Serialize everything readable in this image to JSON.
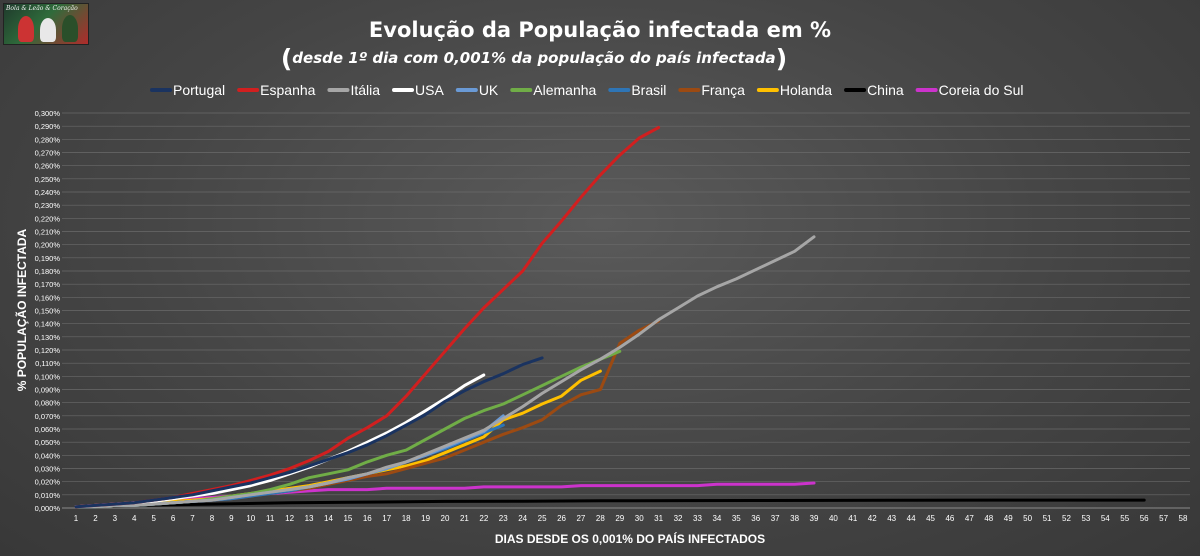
{
  "logo": {
    "text": "Bola & Leão & Coração"
  },
  "chart_data": {
    "type": "line",
    "title": "Evolução da População infectada em %",
    "subtitle_open": "(",
    "subtitle": "desde 1º dia com 0,001% da população do país infectada",
    "subtitle_close": ")",
    "xlabel": "DIAS DESDE OS 0,001% DO PAÍS INFECTADOS",
    "ylabel": "% POPULAÇÃO INFECTADA",
    "xlim": [
      1,
      58
    ],
    "ylim": [
      0,
      0.3
    ],
    "ytick_step": 0.01,
    "grid": "horizontal",
    "legend_position": "top",
    "series": [
      {
        "name": "Portugal",
        "color": "#1a3360",
        "x": [
          1,
          2,
          3,
          4,
          5,
          6,
          7,
          8,
          9,
          10,
          11,
          12,
          13,
          14,
          15,
          16,
          17,
          18,
          19,
          20,
          21,
          22,
          23,
          24,
          25
        ],
        "values": [
          0.001,
          0.002,
          0.003,
          0.004,
          0.006,
          0.008,
          0.01,
          0.013,
          0.016,
          0.019,
          0.023,
          0.027,
          0.032,
          0.037,
          0.042,
          0.048,
          0.055,
          0.063,
          0.071,
          0.081,
          0.089,
          0.096,
          0.102,
          0.109,
          0.114
        ]
      },
      {
        "name": "Espanha",
        "color": "#d11f1f",
        "x": [
          1,
          2,
          3,
          4,
          5,
          6,
          7,
          8,
          9,
          10,
          11,
          12,
          13,
          14,
          15,
          16,
          17,
          18,
          19,
          20,
          21,
          22,
          23,
          24,
          25,
          26,
          27,
          28,
          29,
          30,
          31
        ],
        "values": [
          0.001,
          0.002,
          0.003,
          0.004,
          0.006,
          0.008,
          0.011,
          0.014,
          0.017,
          0.021,
          0.025,
          0.03,
          0.036,
          0.043,
          0.053,
          0.061,
          0.07,
          0.085,
          0.102,
          0.119,
          0.136,
          0.152,
          0.166,
          0.18,
          0.201,
          0.218,
          0.236,
          0.253,
          0.268,
          0.281,
          0.289
        ]
      },
      {
        "name": "Itália",
        "color": "#a6a6a6",
        "x": [
          1,
          2,
          3,
          4,
          5,
          6,
          7,
          8,
          9,
          10,
          11,
          12,
          13,
          14,
          15,
          16,
          17,
          18,
          19,
          20,
          21,
          22,
          23,
          24,
          25,
          26,
          27,
          28,
          29,
          30,
          31,
          32,
          33,
          34,
          35,
          36,
          37,
          38,
          39
        ],
        "values": [
          0.001,
          0.001,
          0.002,
          0.002,
          0.003,
          0.004,
          0.005,
          0.006,
          0.008,
          0.01,
          0.012,
          0.014,
          0.016,
          0.019,
          0.023,
          0.026,
          0.031,
          0.035,
          0.041,
          0.047,
          0.053,
          0.059,
          0.068,
          0.077,
          0.087,
          0.096,
          0.105,
          0.113,
          0.122,
          0.132,
          0.143,
          0.152,
          0.161,
          0.168,
          0.174,
          0.181,
          0.188,
          0.195,
          0.206
        ]
      },
      {
        "name": "USA",
        "color": "#ffffff",
        "x": [
          1,
          2,
          3,
          4,
          5,
          6,
          7,
          8,
          9,
          10,
          11,
          12,
          13,
          14,
          15,
          16,
          17,
          18,
          19,
          20,
          21,
          22
        ],
        "values": [
          0.001,
          0.002,
          0.003,
          0.004,
          0.005,
          0.007,
          0.009,
          0.011,
          0.014,
          0.017,
          0.021,
          0.026,
          0.031,
          0.037,
          0.043,
          0.05,
          0.057,
          0.065,
          0.074,
          0.083,
          0.093,
          0.101
        ]
      },
      {
        "name": "UK",
        "color": "#6a9ad6",
        "x": [
          1,
          2,
          3,
          4,
          5,
          6,
          7,
          8,
          9,
          10,
          11,
          12,
          13,
          14,
          15,
          16,
          17,
          18,
          19,
          20,
          21,
          22,
          23
        ],
        "values": [
          0.001,
          0.001,
          0.002,
          0.002,
          0.003,
          0.004,
          0.005,
          0.006,
          0.008,
          0.01,
          0.012,
          0.014,
          0.016,
          0.019,
          0.022,
          0.026,
          0.03,
          0.035,
          0.04,
          0.046,
          0.052,
          0.058,
          0.07
        ]
      },
      {
        "name": "Alemanha",
        "color": "#70ad47",
        "x": [
          1,
          2,
          3,
          4,
          5,
          6,
          7,
          8,
          9,
          10,
          11,
          12,
          13,
          14,
          15,
          16,
          17,
          18,
          19,
          20,
          21,
          22,
          23,
          24,
          25,
          26,
          27,
          28,
          29
        ],
        "values": [
          0.001,
          0.001,
          0.002,
          0.002,
          0.003,
          0.004,
          0.005,
          0.007,
          0.009,
          0.011,
          0.014,
          0.018,
          0.023,
          0.026,
          0.029,
          0.035,
          0.04,
          0.044,
          0.052,
          0.06,
          0.068,
          0.074,
          0.079,
          0.086,
          0.093,
          0.1,
          0.107,
          0.113,
          0.119
        ]
      },
      {
        "name": "Brasil",
        "color": "#2e75b6",
        "x": [
          1,
          2,
          3,
          4,
          5,
          6,
          7,
          8,
          9,
          10,
          11,
          12,
          13,
          14,
          15,
          16,
          17,
          18,
          19,
          20,
          21,
          22,
          23
        ],
        "values": [
          0.001,
          0.001,
          0.002,
          0.002,
          0.003,
          0.004,
          0.005,
          0.006,
          0.007,
          0.009,
          0.011,
          0.013,
          0.016,
          0.019,
          0.022,
          0.026,
          0.03,
          0.035,
          0.04,
          0.045,
          0.051,
          0.057,
          0.063
        ]
      },
      {
        "name": "França",
        "color": "#9c4a12",
        "x": [
          1,
          2,
          3,
          4,
          5,
          6,
          7,
          8,
          9,
          10,
          11,
          12,
          13,
          14,
          15,
          16,
          17,
          18,
          19,
          20,
          21,
          22,
          23,
          24,
          25,
          26,
          27,
          28,
          29,
          30,
          31
        ],
        "values": [
          0.001,
          0.001,
          0.002,
          0.002,
          0.003,
          0.004,
          0.005,
          0.006,
          0.007,
          0.009,
          0.011,
          0.013,
          0.015,
          0.018,
          0.021,
          0.024,
          0.026,
          0.03,
          0.034,
          0.038,
          0.044,
          0.05,
          0.056,
          0.061,
          0.067,
          0.078,
          0.086,
          0.09,
          0.125,
          0.135,
          0.142
        ]
      },
      {
        "name": "Holanda",
        "color": "#ffc000",
        "x": [
          1,
          2,
          3,
          4,
          5,
          6,
          7,
          8,
          9,
          10,
          11,
          12,
          13,
          14,
          15,
          16,
          17,
          18,
          19,
          20,
          21,
          22,
          23,
          24,
          25,
          26,
          27,
          28
        ],
        "values": [
          0.001,
          0.001,
          0.002,
          0.003,
          0.004,
          0.005,
          0.006,
          0.007,
          0.009,
          0.011,
          0.013,
          0.015,
          0.017,
          0.02,
          0.023,
          0.026,
          0.029,
          0.032,
          0.036,
          0.042,
          0.048,
          0.054,
          0.067,
          0.072,
          0.079,
          0.085,
          0.097,
          0.104
        ]
      },
      {
        "name": "China",
        "color": "#000000",
        "x": [
          1,
          4,
          8,
          12,
          16,
          20,
          24,
          28,
          32,
          36,
          40,
          44,
          48,
          52,
          56
        ],
        "values": [
          0.001,
          0.002,
          0.003,
          0.004,
          0.0045,
          0.005,
          0.0052,
          0.0055,
          0.0056,
          0.0057,
          0.0058,
          0.0059,
          0.006,
          0.006,
          0.006
        ]
      },
      {
        "name": "Coreia do Sul",
        "color": "#cc33cc",
        "x": [
          1,
          2,
          3,
          4,
          5,
          6,
          7,
          8,
          9,
          10,
          11,
          12,
          13,
          14,
          15,
          16,
          17,
          18,
          19,
          20,
          21,
          22,
          23,
          24,
          25,
          26,
          27,
          28,
          29,
          30,
          31,
          32,
          33,
          34,
          35,
          36,
          37,
          38,
          39
        ],
        "values": [
          0.001,
          0.002,
          0.003,
          0.004,
          0.005,
          0.006,
          0.007,
          0.008,
          0.009,
          0.01,
          0.011,
          0.012,
          0.013,
          0.014,
          0.014,
          0.014,
          0.015,
          0.015,
          0.015,
          0.015,
          0.015,
          0.016,
          0.016,
          0.016,
          0.016,
          0.016,
          0.017,
          0.017,
          0.017,
          0.017,
          0.017,
          0.017,
          0.017,
          0.018,
          0.018,
          0.018,
          0.018,
          0.018,
          0.019
        ]
      }
    ]
  }
}
